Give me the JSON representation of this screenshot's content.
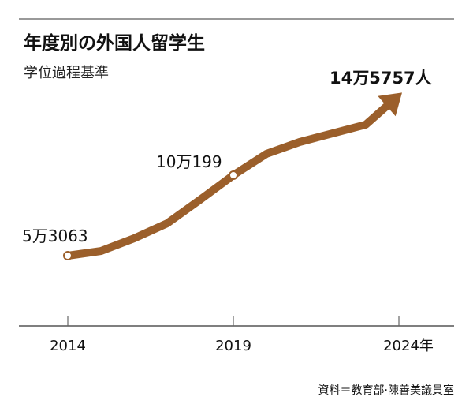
{
  "chart_data": {
    "type": "line",
    "title": "年度別の外国人留学生",
    "subtitle": "学位過程基準",
    "x": [
      2014,
      2015,
      2016,
      2017,
      2018,
      2019,
      2020,
      2021,
      2022,
      2023,
      2024
    ],
    "values": [
      53063,
      55800,
      63200,
      72000,
      85900,
      100199,
      112700,
      119600,
      124700,
      129800,
      145757
    ],
    "x_ticks": [
      "2014",
      "2019",
      "2024年"
    ],
    "x_tick_values": [
      2014,
      2019,
      2024
    ],
    "annotations": [
      {
        "x": 2014,
        "label": "5万3063"
      },
      {
        "x": 2019,
        "label": "10万199"
      },
      {
        "x": 2024,
        "label": "14万5757人"
      }
    ],
    "source": "資料＝教育部·陳善美議員室",
    "xlim": [
      2014,
      2024
    ],
    "grid": false,
    "line_color": "#9b5f2b",
    "end_marker": "arrow"
  }
}
